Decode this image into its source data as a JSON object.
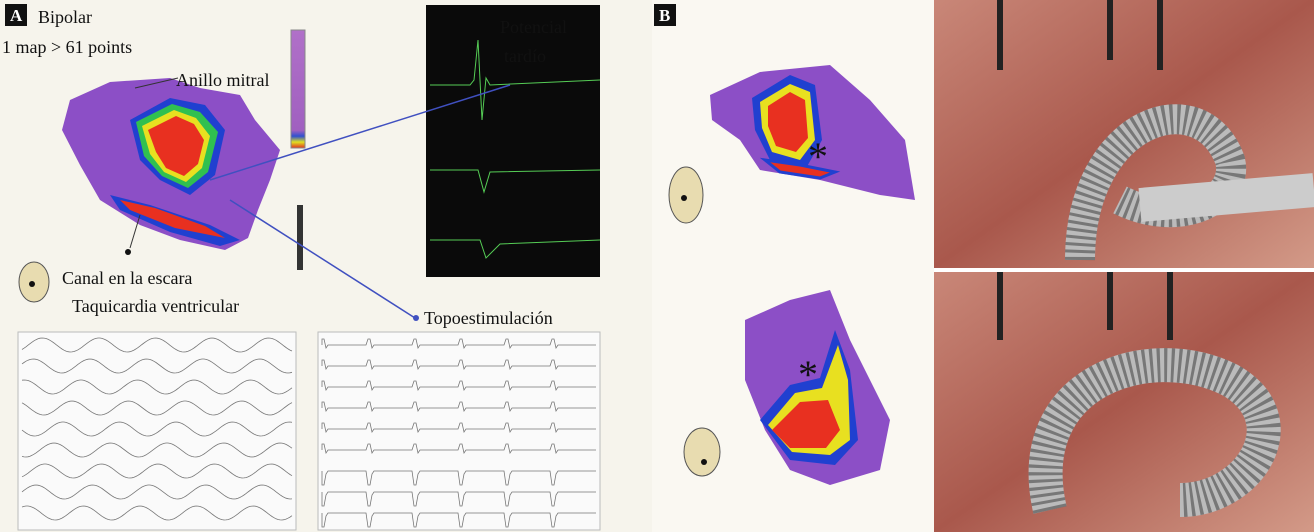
{
  "panel_a": {
    "label": "A",
    "mode": "Bipolar",
    "points": "1 map > 61 points",
    "annotations": {
      "mitral": "Anillo mitral",
      "channel": "Canal en la escara",
      "vt": "Taquicardia ventricular",
      "pacing": "Topoestimulación"
    },
    "signal_label": [
      "Potencial",
      "tardío"
    ]
  },
  "panel_b": {
    "label": "B",
    "markers": [
      "*",
      "*"
    ]
  }
}
